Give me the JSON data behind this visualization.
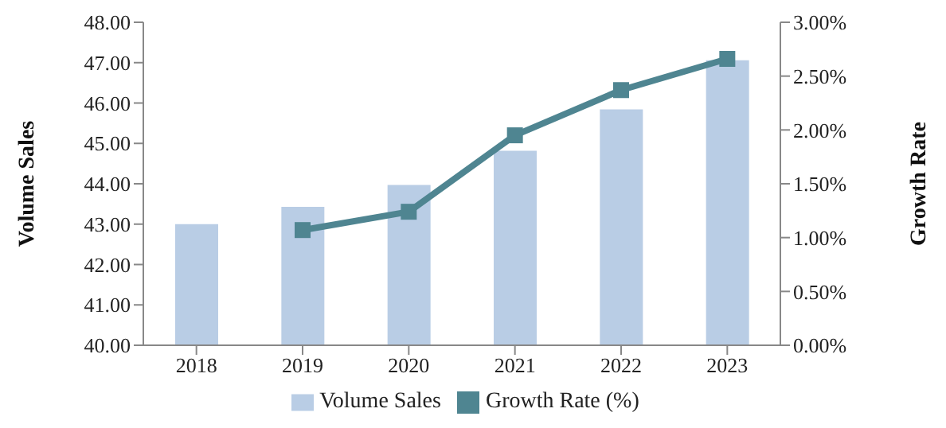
{
  "chart_data": {
    "type": "bar",
    "categories": [
      "2018",
      "2019",
      "2020",
      "2021",
      "2022",
      "2023"
    ],
    "series": [
      {
        "name": "Volume Sales",
        "color": "#b9cde5",
        "values": [
          43.0,
          43.43,
          43.97,
          44.82,
          45.84,
          47.06
        ]
      },
      {
        "name": "Growth Rate (%)",
        "type": "line",
        "axis": "y2",
        "color": "#4f8591",
        "marker": "square",
        "values": [
          null,
          1.07,
          1.24,
          1.95,
          2.37,
          2.66
        ]
      }
    ],
    "ylabel": "Volume Sales",
    "y2label": "Growth Rate",
    "ylim": [
      40,
      48
    ],
    "yticks": [
      {
        "value": 40,
        "label": "40.00"
      },
      {
        "value": 41,
        "label": "41.00"
      },
      {
        "value": 42,
        "label": "42.00"
      },
      {
        "value": 43,
        "label": "43.00"
      },
      {
        "value": 44,
        "label": "44.00"
      },
      {
        "value": 45,
        "label": "45.00"
      },
      {
        "value": 46,
        "label": "46.00"
      },
      {
        "value": 47,
        "label": "47.00"
      },
      {
        "value": 48,
        "label": "48.00"
      }
    ],
    "y2lim": [
      0,
      3
    ],
    "y2ticks": [
      {
        "value": 0,
        "label": "0.00%"
      },
      {
        "value": 0.5,
        "label": "0.50%"
      },
      {
        "value": 1,
        "label": "1.00%"
      },
      {
        "value": 1.5,
        "label": "1.50%"
      },
      {
        "value": 2,
        "label": "2.00%"
      },
      {
        "value": 2.5,
        "label": "2.50%"
      },
      {
        "value": 3,
        "label": "3.00%"
      }
    ],
    "legend": "bottom"
  }
}
